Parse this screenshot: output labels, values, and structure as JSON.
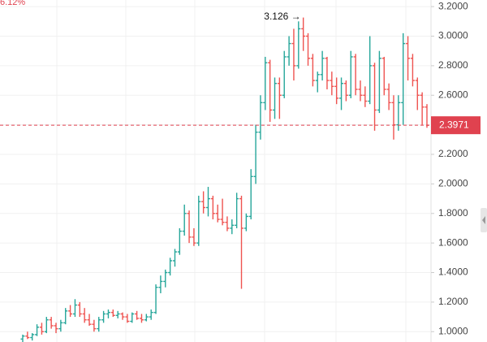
{
  "chart_data": {
    "type": "ohlc",
    "change_label": "6.12%",
    "up_color": "#26a69a",
    "down_color": "#ef5350",
    "open": [
      0.95,
      0.97,
      0.96,
      0.98,
      1.03,
      1.0,
      1.08,
      1.04,
      1.02,
      1.06,
      1.14,
      1.12,
      1.18,
      1.12,
      1.08,
      1.05,
      1.02,
      1.08,
      1.12,
      1.13,
      1.11,
      1.12,
      1.1,
      1.07,
      1.12,
      1.09,
      1.08,
      1.1,
      1.13,
      1.3,
      1.34,
      1.4,
      1.48,
      1.54,
      1.68,
      1.8,
      1.64,
      1.6,
      1.88,
      1.84,
      1.9,
      1.8,
      1.76,
      1.74,
      1.7,
      1.72,
      1.9,
      1.7,
      1.78,
      2.05,
      2.35,
      2.55,
      2.82,
      2.5,
      2.68,
      2.6,
      2.86,
      2.95,
      2.8,
      3.05,
      3.0,
      2.85,
      2.7,
      2.74,
      2.85,
      2.7,
      2.66,
      2.58,
      2.68,
      2.6,
      2.86,
      2.64,
      2.6,
      2.56,
      2.8,
      2.5,
      2.85,
      2.64,
      2.55,
      2.4,
      2.55,
      2.95,
      2.85,
      2.7,
      2.6,
      2.52
    ],
    "high": [
      0.98,
      1.0,
      0.99,
      1.05,
      1.06,
      1.1,
      1.1,
      1.06,
      1.08,
      1.16,
      1.18,
      1.22,
      1.2,
      1.16,
      1.12,
      1.08,
      1.1,
      1.14,
      1.15,
      1.15,
      1.14,
      1.13,
      1.12,
      1.13,
      1.14,
      1.12,
      1.12,
      1.15,
      1.32,
      1.38,
      1.42,
      1.5,
      1.56,
      1.7,
      1.86,
      1.82,
      1.7,
      1.92,
      1.95,
      1.98,
      1.92,
      1.86,
      1.9,
      1.78,
      1.76,
      1.94,
      1.92,
      1.8,
      2.1,
      2.4,
      2.6,
      2.86,
      2.84,
      2.72,
      2.72,
      2.9,
      3.0,
      3.05,
      3.1,
      3.126,
      3.02,
      2.88,
      2.76,
      2.9,
      2.86,
      2.76,
      2.72,
      2.72,
      2.7,
      2.9,
      2.88,
      2.7,
      2.66,
      3.0,
      2.82,
      2.9,
      2.86,
      2.68,
      2.6,
      2.6,
      3.02,
      3.0,
      2.88,
      2.72,
      2.62,
      2.54
    ],
    "low": [
      0.93,
      0.95,
      0.94,
      0.97,
      0.98,
      0.99,
      1.02,
      0.99,
      1.0,
      1.05,
      1.1,
      1.1,
      1.1,
      1.06,
      1.04,
      1.0,
      1.0,
      1.06,
      1.09,
      1.1,
      1.09,
      1.08,
      1.06,
      1.06,
      1.08,
      1.06,
      1.07,
      1.08,
      1.12,
      1.26,
      1.3,
      1.38,
      1.44,
      1.52,
      1.65,
      1.6,
      1.58,
      1.58,
      1.8,
      1.78,
      1.76,
      1.74,
      1.72,
      1.68,
      1.66,
      1.7,
      1.29,
      1.68,
      1.76,
      2.0,
      2.3,
      2.5,
      2.42,
      2.44,
      2.44,
      2.58,
      2.8,
      2.7,
      2.78,
      2.9,
      2.8,
      2.66,
      2.62,
      2.7,
      2.64,
      2.6,
      2.54,
      2.5,
      2.56,
      2.58,
      2.6,
      2.56,
      2.52,
      2.54,
      2.36,
      2.48,
      2.6,
      2.5,
      2.3,
      2.36,
      2.4,
      2.7,
      2.66,
      2.5,
      2.4,
      2.38
    ],
    "close": [
      0.97,
      0.96,
      0.98,
      1.03,
      1.0,
      1.08,
      1.04,
      1.02,
      1.06,
      1.14,
      1.12,
      1.18,
      1.12,
      1.08,
      1.05,
      1.02,
      1.08,
      1.12,
      1.13,
      1.11,
      1.12,
      1.1,
      1.07,
      1.12,
      1.09,
      1.08,
      1.1,
      1.13,
      1.3,
      1.34,
      1.4,
      1.48,
      1.54,
      1.68,
      1.8,
      1.64,
      1.6,
      1.88,
      1.84,
      1.9,
      1.8,
      1.76,
      1.74,
      1.7,
      1.72,
      1.9,
      1.7,
      1.78,
      2.05,
      2.35,
      2.55,
      2.82,
      2.5,
      2.68,
      2.6,
      2.86,
      2.95,
      2.8,
      3.05,
      3.0,
      2.85,
      2.7,
      2.74,
      2.85,
      2.7,
      2.66,
      2.58,
      2.68,
      2.6,
      2.86,
      2.64,
      2.6,
      2.56,
      2.8,
      2.5,
      2.85,
      2.64,
      2.55,
      2.4,
      2.55,
      2.95,
      2.85,
      2.7,
      2.6,
      2.52,
      2.3971
    ],
    "high_annotation": "3.126 →",
    "last_price": 2.3971,
    "last_price_color": "#e0424f",
    "ylim": [
      0.93,
      3.2447
    ],
    "yticks": [
      {
        "value": 1.0,
        "label": "1.0000"
      },
      {
        "value": 1.2,
        "label": "1.2000"
      },
      {
        "value": 1.4,
        "label": "1.4000"
      },
      {
        "value": 1.6,
        "label": "1.6000"
      },
      {
        "value": 1.8,
        "label": "1.8000"
      },
      {
        "value": 2.0,
        "label": "2.0000"
      },
      {
        "value": 2.2,
        "label": "2.2000"
      },
      {
        "value": 2.4,
        "label": "2.4000"
      },
      {
        "value": 2.6,
        "label": "2.6000"
      },
      {
        "value": 2.8,
        "label": "2.8000"
      },
      {
        "value": 3.0,
        "label": "3.0000"
      },
      {
        "value": 3.2,
        "label": "3.2000"
      }
    ],
    "grid": true
  }
}
